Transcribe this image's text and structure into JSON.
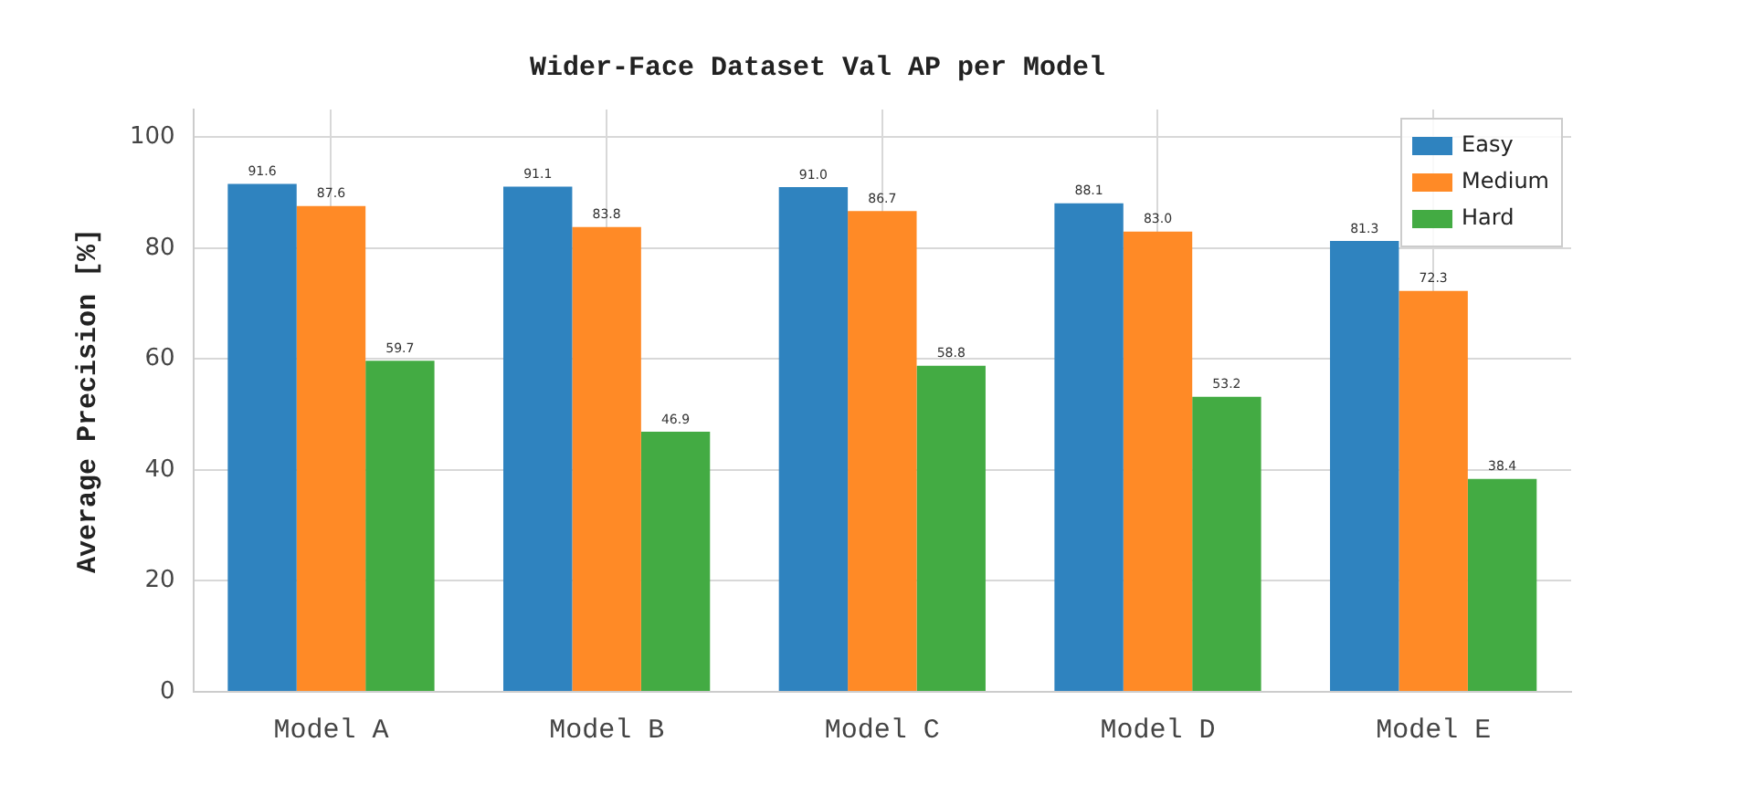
{
  "chart_data": {
    "type": "bar",
    "title": "Wider-Face Dataset Val AP per Model",
    "ylabel": "Average Precision [%]",
    "categories": [
      "Model A",
      "Model B",
      "Model C",
      "Model D",
      "Model E"
    ],
    "series": [
      {
        "name": "Easy",
        "color": "#2f83bf",
        "values": [
          91.6,
          91.1,
          91.0,
          88.1,
          81.3
        ],
        "value_labels": [
          "91.6",
          "91.1",
          "91.0",
          "88.1",
          "81.3"
        ]
      },
      {
        "name": "Medium",
        "color": "#ff8a26",
        "values": [
          87.6,
          83.8,
          86.7,
          83.0,
          72.3
        ],
        "value_labels": [
          "87.6",
          "83.8",
          "86.7",
          "83.0",
          "72.3"
        ]
      },
      {
        "name": "Hard",
        "color": "#43ab43",
        "values": [
          59.7,
          46.9,
          58.8,
          53.2,
          38.4
        ],
        "value_labels": [
          "59.7",
          "46.9",
          "58.8",
          "53.2",
          "38.4"
        ]
      }
    ],
    "ylim": [
      0,
      105
    ],
    "yticks": [
      0,
      20,
      40,
      60,
      80,
      100
    ],
    "grid": true,
    "legend": "top right"
  }
}
